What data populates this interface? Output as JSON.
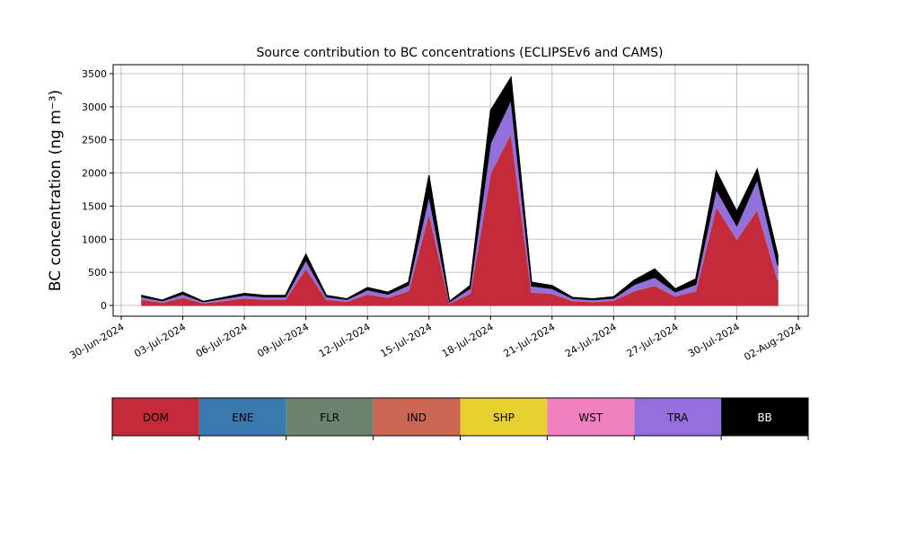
{
  "chart_data": {
    "type": "stacked_area",
    "title": "Source contribution to BC concentrations (ECLIPSEv6 and CAMS)",
    "y_label": "BC concentration (ng m⁻³)",
    "x": [
      "2024-07-01",
      "2024-07-02",
      "2024-07-03",
      "2024-07-04",
      "2024-07-05",
      "2024-07-06",
      "2024-07-07",
      "2024-07-08",
      "2024-07-09",
      "2024-07-10",
      "2024-07-11",
      "2024-07-12",
      "2024-07-13",
      "2024-07-14",
      "2024-07-15",
      "2024-07-16",
      "2024-07-17",
      "2024-07-18",
      "2024-07-19",
      "2024-07-20",
      "2024-07-21",
      "2024-07-22",
      "2024-07-23",
      "2024-07-24",
      "2024-07-25",
      "2024-07-26",
      "2024-07-27",
      "2024-07-28",
      "2024-07-29",
      "2024-07-30",
      "2024-07-31",
      "2024-08-01"
    ],
    "series": [
      {
        "name": "DOM",
        "color": "#c52a3a",
        "values": [
          90,
          45,
          120,
          35,
          70,
          110,
          90,
          90,
          560,
          90,
          60,
          170,
          120,
          220,
          1400,
          35,
          180,
          2000,
          2600,
          200,
          180,
          70,
          55,
          75,
          220,
          300,
          140,
          220,
          1500,
          1000,
          1450,
          380
        ]
      },
      {
        "name": "ENE",
        "color": "#3a78b0",
        "values": [
          1,
          1,
          1,
          1,
          1,
          1,
          1,
          1,
          1,
          1,
          1,
          1,
          1,
          1,
          1,
          1,
          1,
          1,
          1,
          1,
          1,
          1,
          1,
          1,
          1,
          1,
          1,
          1,
          1,
          1,
          1,
          1
        ]
      },
      {
        "name": "FLR",
        "color": "#6e8270",
        "values": [
          1,
          1,
          1,
          1,
          1,
          1,
          1,
          1,
          1,
          1,
          1,
          1,
          1,
          1,
          1,
          1,
          1,
          1,
          1,
          1,
          1,
          1,
          1,
          1,
          1,
          1,
          1,
          1,
          1,
          1,
          1,
          1
        ]
      },
      {
        "name": "IND",
        "color": "#cc6655",
        "values": [
          2,
          2,
          2,
          2,
          2,
          2,
          2,
          2,
          2,
          2,
          2,
          2,
          2,
          2,
          2,
          2,
          2,
          2,
          2,
          2,
          2,
          2,
          2,
          2,
          2,
          2,
          2,
          2,
          2,
          2,
          2,
          2
        ]
      },
      {
        "name": "SHP",
        "color": "#e8d030",
        "values": [
          1,
          1,
          1,
          1,
          1,
          1,
          1,
          1,
          1,
          1,
          1,
          1,
          1,
          1,
          1,
          1,
          1,
          1,
          1,
          1,
          1,
          1,
          1,
          1,
          1,
          1,
          1,
          1,
          1,
          1,
          1,
          1
        ]
      },
      {
        "name": "WST",
        "color": "#f080c0",
        "values": [
          1,
          1,
          1,
          1,
          1,
          1,
          1,
          1,
          1,
          1,
          1,
          1,
          1,
          1,
          1,
          1,
          1,
          1,
          1,
          1,
          1,
          1,
          1,
          1,
          1,
          1,
          1,
          1,
          1,
          1,
          1,
          1
        ]
      },
      {
        "name": "TRA",
        "color": "#9370db",
        "values": [
          35,
          20,
          45,
          15,
          30,
          40,
          35,
          35,
          120,
          35,
          25,
          60,
          45,
          80,
          250,
          15,
          70,
          450,
          500,
          90,
          70,
          30,
          25,
          30,
          90,
          120,
          60,
          90,
          250,
          200,
          450,
          220
        ]
      },
      {
        "name": "BB",
        "color": "#000000",
        "values": [
          20,
          10,
          30,
          6,
          15,
          25,
          20,
          20,
          90,
          20,
          10,
          35,
          30,
          45,
          310,
          6,
          45,
          490,
          340,
          55,
          45,
          15,
          15,
          20,
          65,
          125,
          45,
          85,
          275,
          215,
          155,
          155
        ]
      }
    ],
    "xlim": [
      "2024-06-30",
      "2024-08-02"
    ],
    "xticks": [
      {
        "value": "2024-06-30",
        "label": "30-Jun-2024"
      },
      {
        "value": "2024-07-03",
        "label": "03-Jul-2024"
      },
      {
        "value": "2024-07-06",
        "label": "06-Jul-2024"
      },
      {
        "value": "2024-07-09",
        "label": "09-Jul-2024"
      },
      {
        "value": "2024-07-12",
        "label": "12-Jul-2024"
      },
      {
        "value": "2024-07-15",
        "label": "15-Jul-2024"
      },
      {
        "value": "2024-07-18",
        "label": "18-Jul-2024"
      },
      {
        "value": "2024-07-21",
        "label": "21-Jul-2024"
      },
      {
        "value": "2024-07-24",
        "label": "24-Jul-2024"
      },
      {
        "value": "2024-07-27",
        "label": "27-Jul-2024"
      },
      {
        "value": "2024-07-30",
        "label": "30-Jul-2024"
      },
      {
        "value": "2024-08-02",
        "label": "02-Aug-2024"
      }
    ],
    "ylim": [
      0,
      3500
    ],
    "yticks": [
      0,
      500,
      1000,
      1500,
      2000,
      2500,
      3000,
      3500
    ],
    "grid": true
  }
}
